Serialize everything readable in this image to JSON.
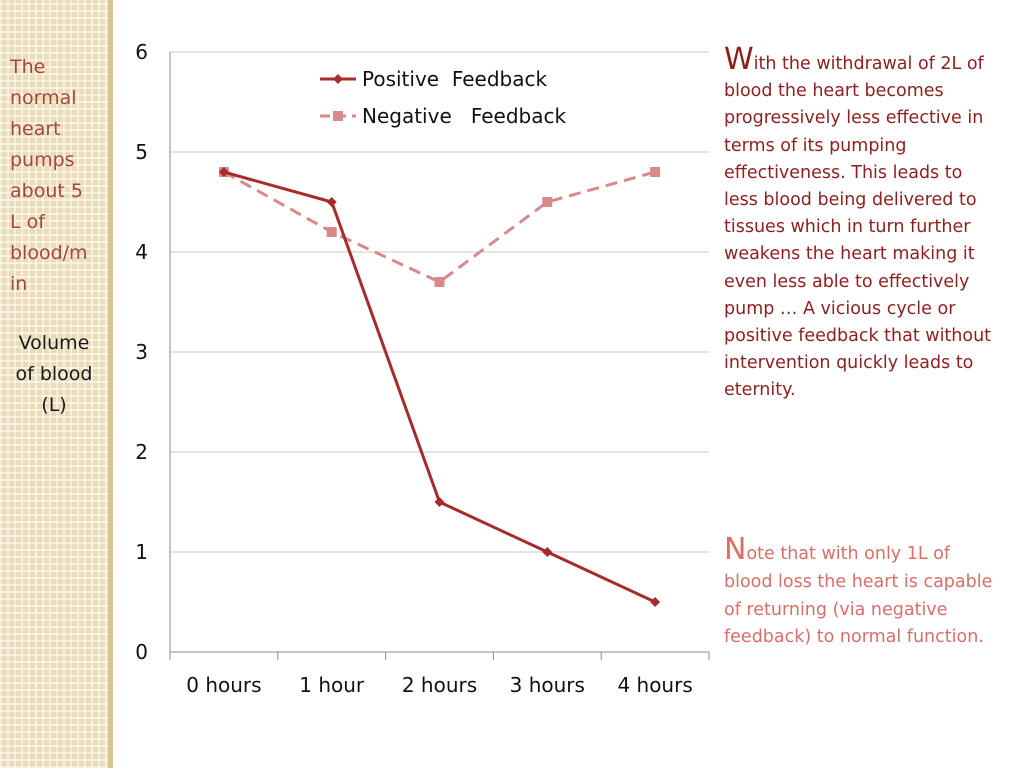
{
  "colors": {
    "positive": "#a72b2b",
    "negative": "#d88a8a",
    "axis": "#8c8c8c",
    "grid": "#c8c8c8",
    "para1": "#8e1f1f",
    "para2": "#d86f6a",
    "left_note": "#a5473e"
  },
  "left_note": "The\nnormal\nheart\npumps\nabout 5\nL of\nblood/m\nin",
  "ylabel_text": "Volume\nof blood\n(L)",
  "paragraphs": {
    "p1_cap": "W",
    "p1_rest": "ith the withdrawal of 2L of blood the heart becomes progressively less effective in terms of its pumping effectiveness. This leads to less blood being delivered to tissues which in turn further weakens the heart  making it even less able to effectively pump … A vicious cycle or positive feedback that without intervention quickly leads to eternity.",
    "p2_cap": "N",
    "p2_rest": "ote that with only 1L of blood loss the heart is capable of returning (via negative feedback) to normal function."
  },
  "chart_data": {
    "type": "line",
    "title": "",
    "xlabel": "",
    "ylabel": "Volume of blood (L)",
    "categories": [
      "0 hours",
      "1 hour",
      "2 hours",
      "3 hours",
      "4 hours"
    ],
    "ylim": [
      0,
      6
    ],
    "yticks": [
      "0",
      "1",
      "2",
      "3",
      "4",
      "5",
      "6"
    ],
    "grid": true,
    "legend_position": "top-center",
    "series": [
      {
        "name": "Positive  Feedback",
        "values": [
          4.8,
          4.5,
          1.5,
          1.0,
          0.5
        ],
        "marker": "diamond",
        "dash": "solid",
        "color_key": "positive"
      },
      {
        "name": "Negative   Feedback",
        "values": [
          4.8,
          4.2,
          3.7,
          4.5,
          4.8
        ],
        "marker": "square",
        "dash": "dashed",
        "color_key": "negative"
      }
    ]
  }
}
